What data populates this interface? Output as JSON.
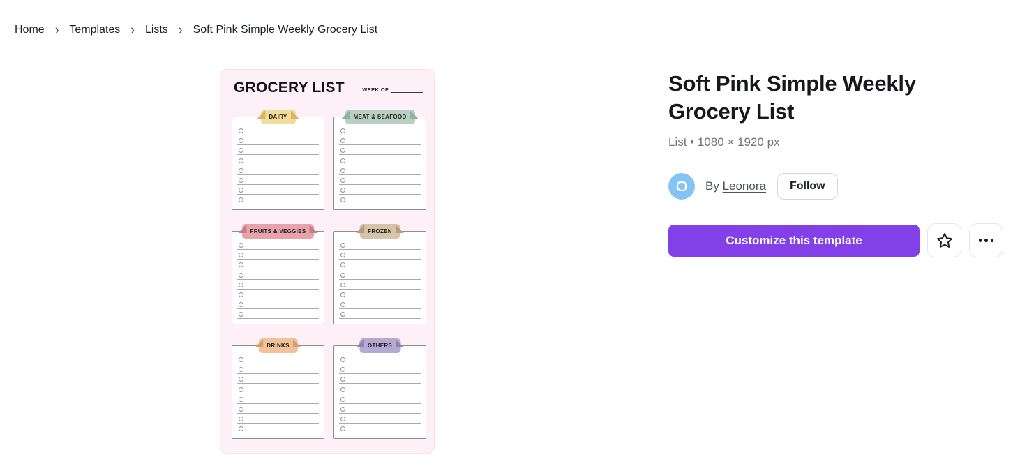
{
  "breadcrumb": {
    "items": [
      {
        "label": "Home"
      },
      {
        "label": "Templates"
      },
      {
        "label": "Lists"
      }
    ],
    "current": "Soft Pink Simple Weekly Grocery List",
    "separator": "›"
  },
  "preview": {
    "title": "GROCERY LIST",
    "week_of_label": "WEEK OF",
    "sections": [
      {
        "label": "DAIRY",
        "tab_color": "#f3dc97",
        "fold_color": "#d7b764",
        "rows": 8
      },
      {
        "label": "MEAT & SEAFOOD",
        "tab_color": "#b8cfc2",
        "fold_color": "#8fb29e",
        "rows": 8
      },
      {
        "label": "FRUITS & VEGGIES",
        "tab_color": "#e7a2ab",
        "fold_color": "#c67d88",
        "rows": 8
      },
      {
        "label": "FROZEN",
        "tab_color": "#d6c3aa",
        "fold_color": "#b39e7f",
        "rows": 8
      },
      {
        "label": "DRINKS",
        "tab_color": "#f1c29b",
        "fold_color": "#d69f6d",
        "rows": 8
      },
      {
        "label": "OTHERS",
        "tab_color": "#b5aad1",
        "fold_color": "#9184b1",
        "rows": 8
      }
    ]
  },
  "details": {
    "title": "Soft Pink Simple Weekly Grocery List",
    "meta": "List • 1080 × 1920 px",
    "by_label": "By ",
    "author": "Leonora",
    "follow_label": "Follow",
    "customize_label": "Customize this template"
  },
  "icons": {
    "chevron_right": "›",
    "star": "star-outline",
    "more": "three-dots-ellipsis",
    "creator_badge": "rounded-square-outline"
  },
  "colors": {
    "accent_purple": "#8440e8",
    "card_background": "#fdf0f6",
    "avatar_blue": "#84c4f4"
  }
}
